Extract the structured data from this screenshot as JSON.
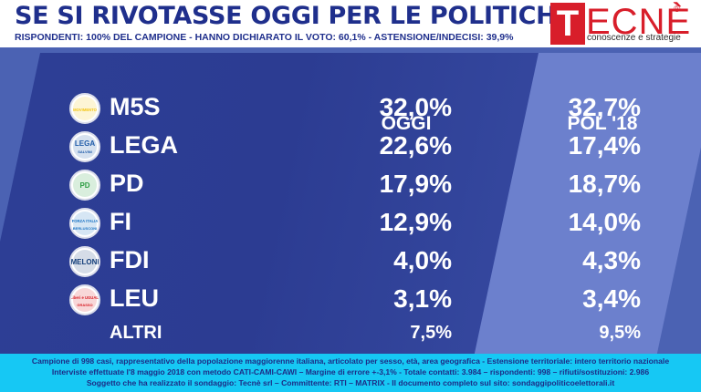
{
  "header": {
    "title": "SE SI RIVOTASSE OGGI PER LE POLITICHE",
    "subtitle": "RISPONDENTI: 100% DEL CAMPIONE - HANNO DICHIARATO IL VOTO: 60,1% - ASTENSIONE/INDECISI: 39,9%"
  },
  "brand": {
    "mark": "T",
    "word": "ECNÈ",
    "tagline": "conoscenze e strategie",
    "reg": "®",
    "color": "#d81e2a"
  },
  "chart_data": {
    "type": "table",
    "columns": [
      "OGGI",
      "POL '18"
    ],
    "rows": [
      {
        "party": "M5S",
        "oggi": "32,0%",
        "pol18": "32,7%",
        "logo_icon": "m5s-logo-icon",
        "logo_text": "MOVIMENTO",
        "color": "#f4c514"
      },
      {
        "party": "LEGA",
        "oggi": "22,6%",
        "pol18": "17,4%",
        "logo_icon": "lega-logo-icon",
        "logo_text": "LEGA",
        "logo_sub": "SALVINI",
        "color": "#1e5aa8"
      },
      {
        "party": "PD",
        "oggi": "17,9%",
        "pol18": "18,7%",
        "logo_icon": "pd-logo-icon",
        "logo_text": "PD",
        "color": "#2e9e44"
      },
      {
        "party": "FI",
        "oggi": "12,9%",
        "pol18": "14,0%",
        "logo_icon": "fi-logo-icon",
        "logo_text": "FORZA ITALIA",
        "logo_sub": "BERLUSCONI",
        "color": "#1c74c4"
      },
      {
        "party": "FDI",
        "oggi": "4,0%",
        "pol18": "4,3%",
        "logo_icon": "fdi-logo-icon",
        "logo_text": "MELONI",
        "color": "#143e7a"
      },
      {
        "party": "LEU",
        "oggi": "3,1%",
        "pol18": "3,4%",
        "logo_icon": "leu-logo-icon",
        "logo_text": "Liberi e UGUALI",
        "logo_sub": "GRASSO",
        "color": "#d82028"
      },
      {
        "party": "ALTRI",
        "oggi": "7,5%",
        "pol18": "9,5%",
        "logo_icon": "",
        "color": ""
      }
    ]
  },
  "footer": {
    "line1": "Campione di  998 casi, rappresentativo della popolazione maggiorenne italiana, articolato per sesso, età, area geografica - Estensione territoriale: intero territorio nazionale",
    "line2": "Interviste effettuate l'8 maggio 2018 con metodo CATI-CAMI-CAWI – Margine di errore +-3,1% - Totale contatti: 3.984 – rispondenti: 998 – rifiuti/sostituzioni: 2.986",
    "line3": "Soggetto che ha realizzato il sondaggio: Tecnè srl – Committente: RTI – MATRIX - Il documento completo sul sito: sondaggipoliticoelettorali.it"
  },
  "colors": {
    "title": "#1f2f8c",
    "background": "#4b62b3",
    "band": "#2c3c92",
    "band_right": "#6c80cd",
    "footer": "#16c8f4"
  }
}
